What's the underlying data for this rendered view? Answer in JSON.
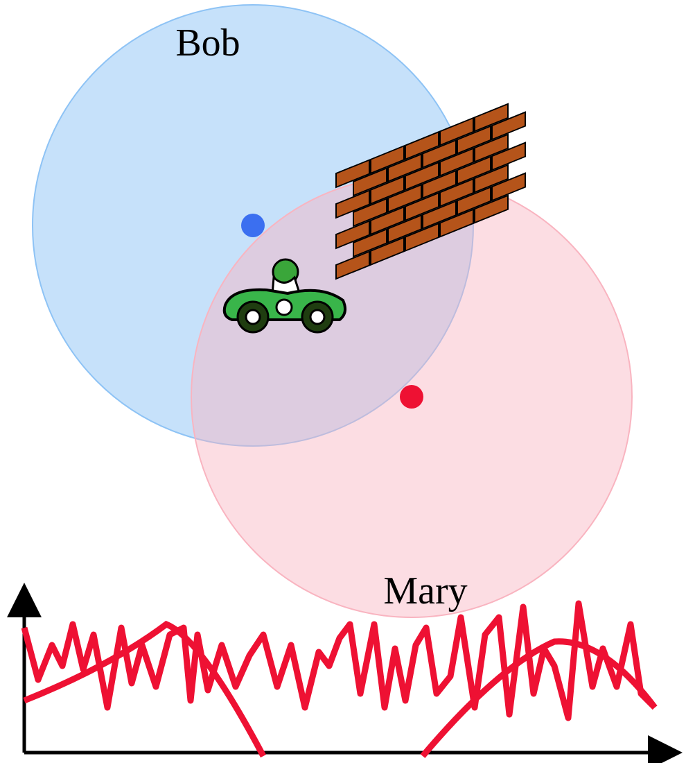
{
  "circles": [
    {
      "label": "Bob"
    },
    {
      "label": "Mary"
    }
  ]
}
